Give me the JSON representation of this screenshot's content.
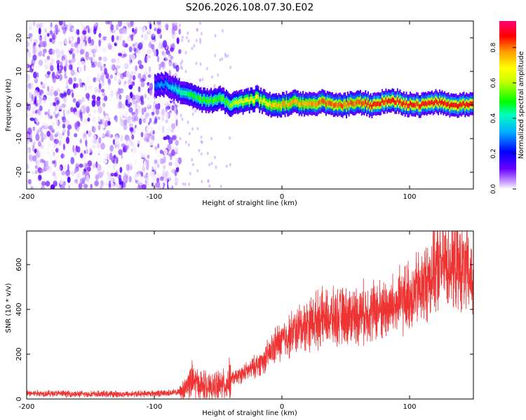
{
  "title": "S206.2026.108.07.30.E02",
  "chart_data": [
    {
      "type": "heatmap",
      "xlabel": "Height of straight line (km)",
      "ylabel": "Frequency (Hz)",
      "xlim": [
        -200,
        150
      ],
      "ylim": [
        -25,
        25
      ],
      "xticks": [
        -200,
        -100,
        0,
        100
      ],
      "yticks": [
        -20,
        -10,
        0,
        10,
        20
      ],
      "colorbar": {
        "label": "Normalized spectral amplitude",
        "range": [
          0,
          0.95
        ],
        "ticks": [
          0.0,
          0.2,
          0.4,
          0.6,
          0.8
        ]
      },
      "noise_region_x": [
        -200,
        -80
      ],
      "ridge": {
        "x": [
          -100,
          -90,
          -80,
          -70,
          -60,
          -50,
          -40,
          -30,
          -20,
          -10,
          0,
          10,
          20,
          30,
          40,
          50,
          60,
          70,
          80,
          90,
          100,
          110,
          120,
          130,
          140,
          150
        ],
        "freq": [
          6,
          6,
          4,
          3,
          1,
          2,
          0,
          1,
          2,
          0,
          0,
          1,
          0,
          1,
          0,
          0,
          1,
          0,
          1,
          1,
          0,
          0,
          1,
          0,
          0,
          0
        ],
        "amplitude": [
          0.3,
          0.35,
          0.45,
          0.5,
          0.55,
          0.55,
          0.6,
          0.7,
          0.7,
          0.75,
          0.8,
          0.8,
          0.8,
          0.85,
          0.85,
          0.85,
          0.85,
          0.9,
          0.9,
          0.9,
          0.9,
          0.9,
          0.9,
          0.9,
          0.9,
          0.9
        ]
      }
    },
    {
      "type": "line",
      "xlabel": "Height of straight line (km)",
      "ylabel": "SNR (10 * v/v)",
      "xlim": [
        -200,
        150
      ],
      "ylim": [
        0,
        750
      ],
      "xticks": [
        -200,
        -100,
        0,
        100
      ],
      "yticks": [
        0,
        200,
        400,
        600
      ],
      "color": "#ee3333",
      "series": [
        {
          "x": [
            -200,
            -180,
            -160,
            -140,
            -120,
            -100,
            -90,
            -80,
            -75,
            -70,
            -65,
            -60,
            -55,
            -50,
            -45,
            -40,
            -35,
            -30,
            -25,
            -20,
            -15,
            -10,
            -5,
            0,
            5,
            10,
            15,
            20,
            25,
            30,
            40,
            50,
            60,
            70,
            80,
            90,
            100,
            110,
            115,
            120,
            125,
            130,
            135,
            140,
            145,
            150
          ],
          "values": [
            25,
            25,
            22,
            22,
            22,
            25,
            27,
            30,
            60,
            80,
            65,
            60,
            45,
            70,
            60,
            90,
            100,
            115,
            130,
            150,
            170,
            200,
            240,
            260,
            280,
            300,
            320,
            335,
            350,
            360,
            360,
            370,
            380,
            395,
            400,
            420,
            460,
            500,
            540,
            580,
            600,
            610,
            600,
            590,
            560,
            530
          ]
        }
      ]
    }
  ]
}
